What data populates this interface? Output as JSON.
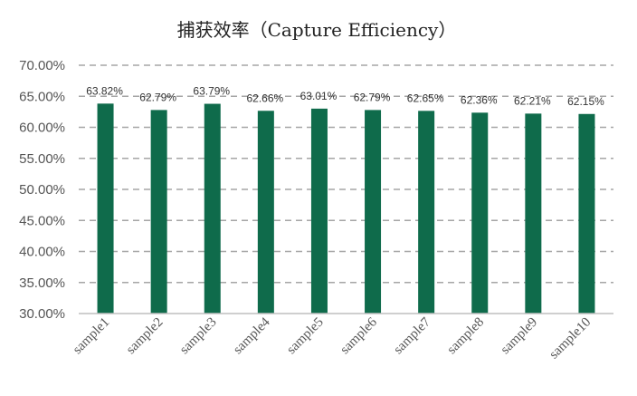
{
  "chart_data": {
    "type": "bar",
    "title": "捕获效率（Capture Efficiency）",
    "xlabel": "",
    "ylabel": "",
    "categories": [
      "sample1",
      "sample2",
      "sample3",
      "sample4",
      "sample5",
      "sample6",
      "sample7",
      "sample8",
      "sample9",
      "sample10"
    ],
    "values": [
      63.82,
      62.79,
      63.79,
      62.66,
      63.01,
      62.79,
      62.65,
      62.36,
      62.21,
      62.15
    ],
    "data_labels": [
      "63.82%",
      "62.79%",
      "63.79%",
      "62.66%",
      "63.01%",
      "62.79%",
      "62.65%",
      "62.36%",
      "62.21%",
      "62.15%"
    ],
    "yticks": [
      30,
      35,
      40,
      45,
      50,
      55,
      60,
      65,
      70
    ],
    "ytick_labels": [
      "30.00%",
      "35.00%",
      "40.00%",
      "45.00%",
      "50.00%",
      "55.00%",
      "60.00%",
      "65.00%",
      "70.00%"
    ],
    "ylim": [
      30,
      70
    ],
    "grid": true,
    "grid_style": "dashed",
    "legend": "none",
    "bar_color": "#0f6b4b",
    "grid_color": "#a6a6a6",
    "axis_color": "#bfbfbf"
  }
}
